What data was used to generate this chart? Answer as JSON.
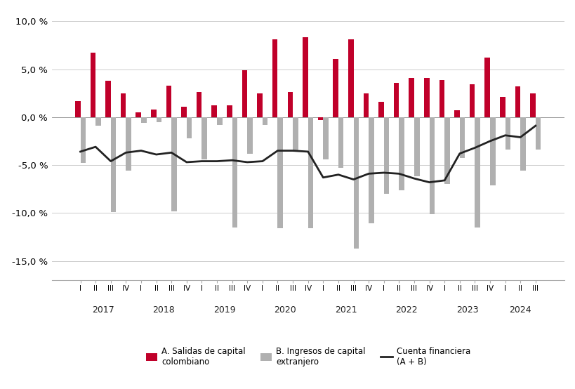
{
  "quarter_labels": [
    "I",
    "II",
    "III",
    "IV",
    "I",
    "II",
    "III",
    "IV",
    "I",
    "II",
    "III",
    "IV",
    "I",
    "II",
    "III",
    "IV",
    "I",
    "II",
    "III",
    "IV",
    "I",
    "II",
    "III",
    "IV",
    "I",
    "II",
    "III",
    "IV",
    "I",
    "II",
    "III"
  ],
  "years": [
    2017,
    2017,
    2017,
    2017,
    2018,
    2018,
    2018,
    2018,
    2019,
    2019,
    2019,
    2019,
    2020,
    2020,
    2020,
    2020,
    2021,
    2021,
    2021,
    2021,
    2022,
    2022,
    2022,
    2022,
    2023,
    2023,
    2023,
    2023,
    2024,
    2024,
    2024
  ],
  "salidas": [
    1.7,
    6.7,
    3.8,
    2.5,
    0.5,
    0.8,
    3.3,
    1.1,
    2.6,
    1.2,
    1.2,
    4.9,
    2.5,
    8.1,
    2.6,
    8.3,
    -0.3,
    6.1,
    8.1,
    2.5,
    1.6,
    3.6,
    4.1,
    4.1,
    3.9,
    0.7,
    3.4,
    6.2,
    2.1,
    3.2,
    2.5
  ],
  "ingresos": [
    -4.8,
    -0.9,
    -9.9,
    -5.6,
    -0.6,
    -0.5,
    -9.8,
    -2.2,
    -4.4,
    -0.8,
    -11.5,
    -3.8,
    -0.8,
    -11.6,
    -3.5,
    -11.6,
    -4.4,
    -5.3,
    -13.7,
    -11.1,
    -8.0,
    -7.6,
    -6.2,
    -10.1,
    -7.0,
    -4.3,
    -11.5,
    -7.1,
    -3.4,
    -5.6,
    -3.4
  ],
  "cuenta_financiera": [
    -3.6,
    -3.1,
    -4.6,
    -3.7,
    -3.5,
    -3.9,
    -3.7,
    -4.7,
    -4.6,
    -4.6,
    -4.5,
    -4.7,
    -4.6,
    -3.5,
    -3.5,
    -3.6,
    -6.3,
    -6.0,
    -6.5,
    -5.9,
    -5.8,
    -5.9,
    -6.4,
    -6.8,
    -6.6,
    -3.8,
    -3.2,
    -2.5,
    -1.9,
    -2.1,
    -0.9
  ],
  "bar_color_red": "#c0002a",
  "bar_color_gray": "#b0b0b0",
  "line_color": "#222222",
  "background_color": "#ffffff",
  "grid_color": "#cccccc",
  "ylim_min": -17,
  "ylim_max": 11,
  "yticks": [
    -15.0,
    -10.0,
    -5.0,
    0.0,
    5.0,
    10.0
  ],
  "legend_label_a": "A. Salidas de capital\ncolombiano",
  "legend_label_b": "B. Ingresos de capital\nextranjero",
  "legend_label_c": "Cuenta financiera\n(A + B)"
}
